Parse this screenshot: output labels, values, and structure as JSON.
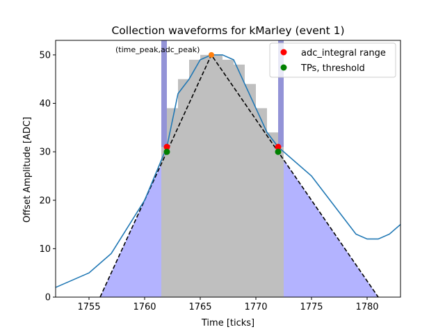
{
  "chart_data": {
    "type": "line",
    "title": "Collection waveforms for kMarley (event 1)",
    "xlabel": "Time [ticks]",
    "ylabel": "Offset Amplitude [ADC]",
    "xlim": [
      1752,
      1783
    ],
    "ylim": [
      0,
      53
    ],
    "xticks": [
      1755,
      1760,
      1765,
      1770,
      1775,
      1780
    ],
    "yticks": [
      0,
      10,
      20,
      30,
      40,
      50
    ],
    "grid": false,
    "legend_position": "top-right",
    "legend": [
      {
        "label": "adc_integral range",
        "color": "#ff0000"
      },
      {
        "label": "TPs, threshold",
        "color": "#008000"
      }
    ],
    "annotation": {
      "text": "(time_peak,adc_peak)",
      "x": 1766,
      "y": 50
    },
    "waveform": {
      "color": "#1f77b4",
      "x": [
        1752,
        1755,
        1757,
        1760,
        1762,
        1763,
        1764,
        1765,
        1766,
        1767,
        1768,
        1769,
        1770,
        1771,
        1772,
        1775,
        1777,
        1779,
        1780,
        1781,
        1782,
        1783
      ],
      "y": [
        2,
        5,
        9,
        20,
        31,
        42,
        45,
        49,
        50,
        50,
        49,
        44,
        39,
        34,
        31,
        25,
        19,
        13,
        12,
        12,
        13,
        15
      ]
    },
    "histogram": {
      "color": "#bfbfbf",
      "x": [
        1761.5,
        1762,
        1763,
        1764,
        1765,
        1766,
        1767,
        1768,
        1769,
        1770,
        1771,
        1772
      ],
      "y": [
        31,
        39,
        45,
        49,
        50,
        50,
        49,
        48,
        44,
        39,
        34,
        31
      ]
    },
    "triangle": {
      "color": "#000000",
      "fill": "#b3b3ff",
      "x": [
        1756,
        1766,
        1781
      ],
      "y": [
        0,
        50,
        0
      ]
    },
    "dark_bands": {
      "color": "#8080d0",
      "ranges": [
        [
          1761.5,
          1762
        ],
        [
          1772,
          1772.5
        ]
      ]
    },
    "peak_marker": {
      "x": 1766,
      "y": 50,
      "color": "#ff7f0e"
    },
    "adc_integral_range": {
      "x": [
        1762,
        1772
      ],
      "y": [
        31,
        31
      ]
    },
    "tps_threshold": {
      "x": [
        1762,
        1772
      ],
      "y": [
        30,
        30
      ]
    }
  }
}
